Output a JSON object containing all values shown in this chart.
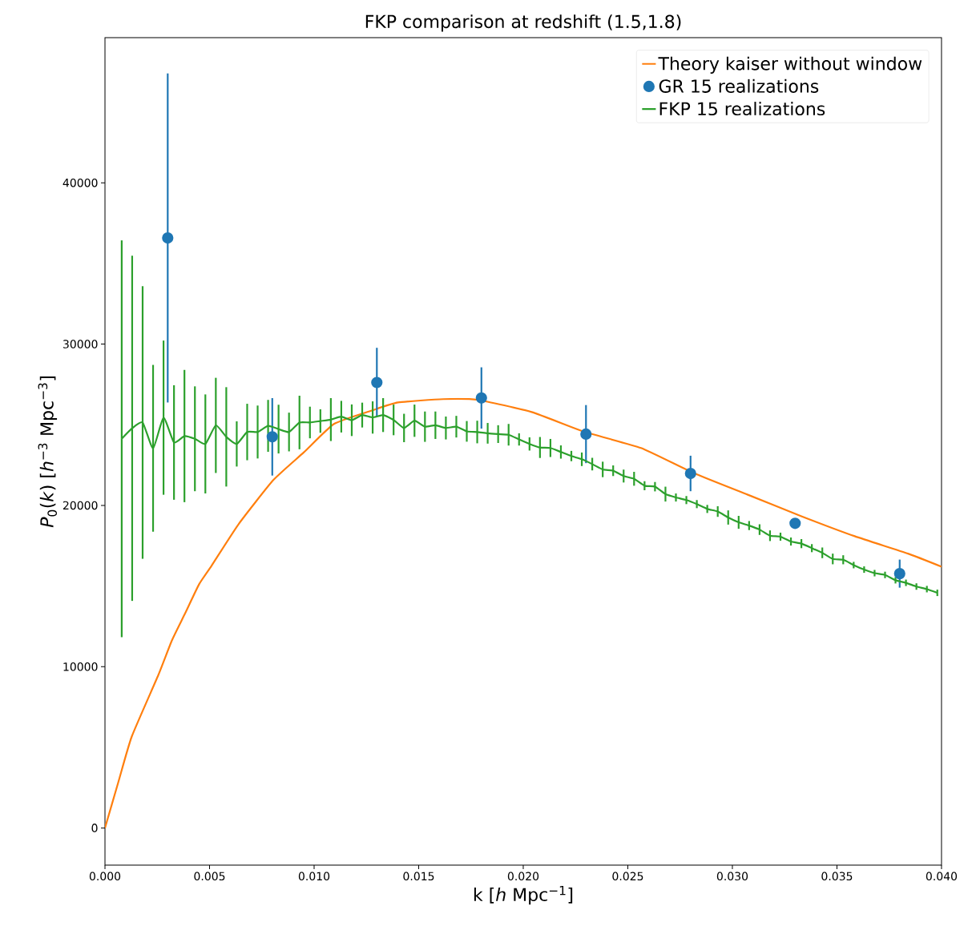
{
  "chart_data": {
    "type": "line",
    "title": "FKP comparison at redshift (1.5,1.8)",
    "xlabel": "k [*h* Mpc$^{−1}$]",
    "ylabel": "*P*$_{0}$(*k*) [*h*$^{−3}$ Mpc$^{−3}$]",
    "xlim": [
      0,
      0.04
    ],
    "ylim": [
      -2300,
      49000
    ],
    "xticks": [
      {
        "value": 0,
        "label": "0.000"
      },
      {
        "value": 0.005,
        "label": "0.005"
      },
      {
        "value": 0.01,
        "label": "0.010"
      },
      {
        "value": 0.015,
        "label": "0.015"
      },
      {
        "value": 0.02,
        "label": "0.020"
      },
      {
        "value": 0.025,
        "label": "0.025"
      },
      {
        "value": 0.03,
        "label": "0.030"
      },
      {
        "value": 0.035,
        "label": "0.035"
      },
      {
        "value": 0.04,
        "label": "0.040"
      }
    ],
    "yticks": [
      0,
      10000,
      20000,
      30000,
      40000
    ],
    "legend": "top right",
    "series": [
      {
        "name": "Theory kaiser without window",
        "color": "#ff7f0e",
        "marker": "none",
        "x": [
          0,
          0.00064,
          0.00128,
          0.00255,
          0.0032,
          0.00383,
          0.0045,
          0.0051,
          0.00639,
          0.00805,
          0.0095,
          0.01095,
          0.01273,
          0.01401,
          0.01618,
          0.01784,
          0.0204,
          0.02295,
          0.02563,
          0.02819,
          0.03074,
          0.0333,
          0.03585,
          0.0384,
          0.04
        ],
        "values": [
          0,
          2850,
          5670,
          9480,
          11630,
          13300,
          15110,
          16270,
          18840,
          21570,
          23280,
          25050,
          25870,
          26380,
          26590,
          26540,
          25790,
          24550,
          23560,
          21980,
          20660,
          19330,
          18090,
          17010,
          16200
        ]
      },
      {
        "name": "GR 15 realizations",
        "type": "scatter",
        "color": "#1f77b4",
        "marker": "circle",
        "x": [
          0.003,
          0.008,
          0.013,
          0.018,
          0.023,
          0.028,
          0.033,
          0.038
        ],
        "values": [
          36580,
          24250,
          27620,
          26660,
          24420,
          21980,
          18890,
          15770
        ],
        "errors": [
          10200,
          2400,
          2150,
          1900,
          1800,
          1100,
          null,
          870
        ]
      },
      {
        "name": "FKP 15 realizations",
        "color": "#2ca02c",
        "marker": "none",
        "x": [
          0.0008,
          0.0013,
          0.0018,
          0.0023,
          0.0028,
          0.0033,
          0.0038,
          0.0043,
          0.0048,
          0.0053,
          0.0058,
          0.0063,
          0.0068,
          0.0073,
          0.0078,
          0.0083,
          0.0088,
          0.0093,
          0.0098,
          0.0103,
          0.0108,
          0.0113,
          0.0118,
          0.0123,
          0.0128,
          0.0133,
          0.0138,
          0.0143,
          0.0148,
          0.0153,
          0.0158,
          0.0163,
          0.0168,
          0.0173,
          0.0178,
          0.0183,
          0.0188,
          0.0193,
          0.0198,
          0.0203,
          0.0208,
          0.0213,
          0.0218,
          0.0223,
          0.0228,
          0.0233,
          0.0238,
          0.0243,
          0.0248,
          0.0253,
          0.0258,
          0.0263,
          0.0268,
          0.0273,
          0.0278,
          0.0283,
          0.0288,
          0.0293,
          0.0298,
          0.0303,
          0.0308,
          0.0313,
          0.0318,
          0.0323,
          0.0328,
          0.0333,
          0.0338,
          0.0343,
          0.0348,
          0.0353,
          0.0358,
          0.0363,
          0.0368,
          0.0373,
          0.0378,
          0.0383,
          0.0388,
          0.0393,
          0.0398
        ],
        "values": [
          24130,
          24780,
          25140,
          23540,
          25440,
          23900,
          24300,
          24130,
          23810,
          24960,
          24250,
          23810,
          24550,
          24550,
          24930,
          24730,
          24550,
          25140,
          25140,
          25230,
          25320,
          25500,
          25280,
          25600,
          25450,
          25600,
          25300,
          24800,
          25250,
          24880,
          24970,
          24800,
          24880,
          24590,
          24550,
          24470,
          24420,
          24380,
          24090,
          23810,
          23590,
          23560,
          23310,
          23060,
          22860,
          22560,
          22230,
          22150,
          21820,
          21650,
          21220,
          21160,
          20700,
          20490,
          20330,
          20080,
          19780,
          19620,
          19250,
          18950,
          18750,
          18500,
          18120,
          18060,
          17760,
          17630,
          17350,
          17060,
          16680,
          16630,
          16300,
          16020,
          15800,
          15690,
          15360,
          15200,
          14970,
          14810,
          14580
        ],
        "errors": [
          12300,
          10700,
          8450,
          5170,
          4780,
          3550,
          4100,
          3250,
          3070,
          2950,
          3080,
          1400,
          1750,
          1640,
          1610,
          1510,
          1200,
          1660,
          980,
          730,
          1330,
          980,
          980,
          770,
          1000,
          1050,
          950,
          880,
          1000,
          940,
          850,
          710,
          670,
          640,
          700,
          640,
          550,
          670,
          380,
          410,
          650,
          560,
          410,
          320,
          420,
          390,
          480,
          330,
          400,
          430,
          280,
          290,
          460,
          250,
          250,
          250,
          250,
          330,
          440,
          400,
          280,
          330,
          330,
          250,
          250,
          280,
          250,
          330,
          330,
          280,
          200,
          200,
          200,
          200,
          200,
          200,
          200,
          200,
          200
        ]
      }
    ]
  }
}
